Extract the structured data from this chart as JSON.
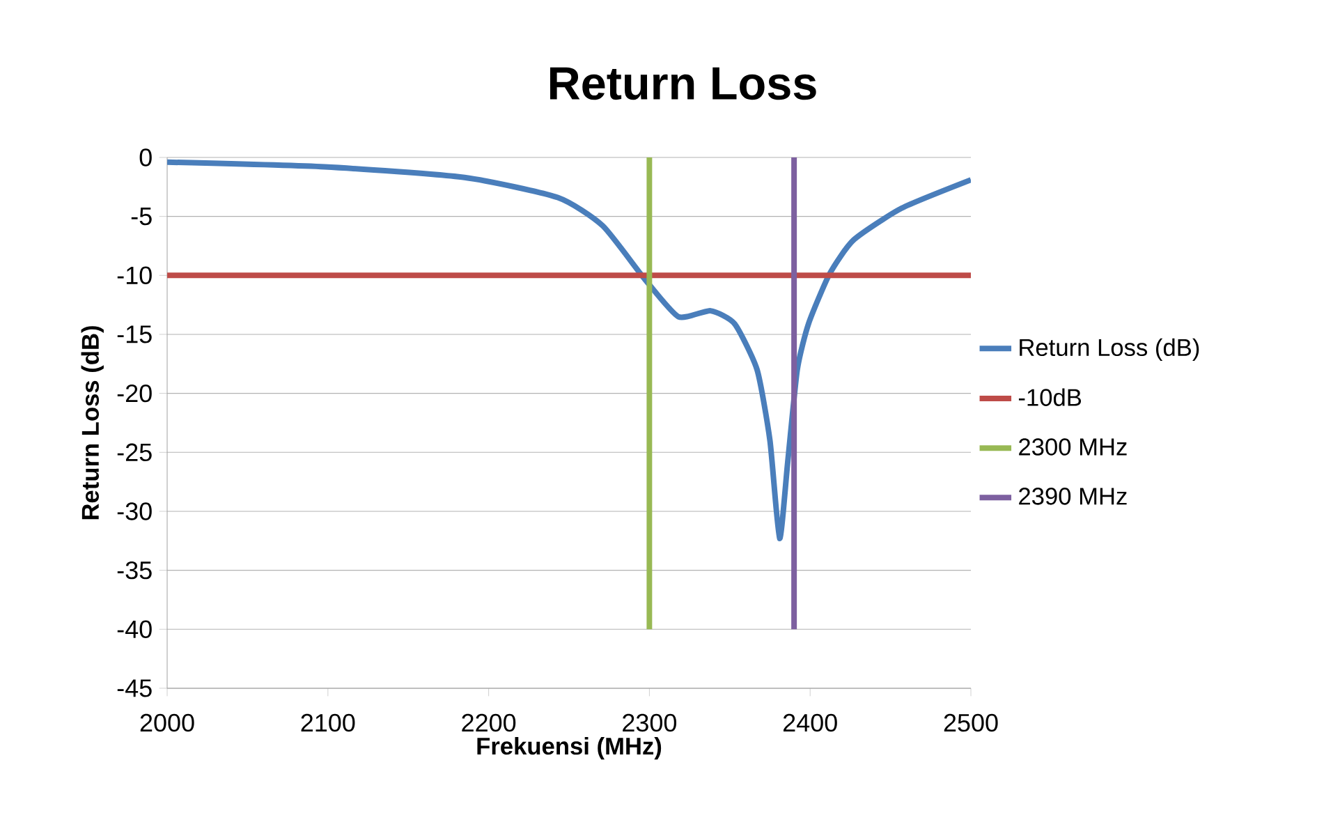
{
  "chart_data": {
    "type": "line",
    "title": "Return Loss",
    "xlabel": "Frekuensi  (MHz)",
    "ylabel": "Return  Loss (dB)",
    "xlim": [
      2000,
      2500
    ],
    "ylim": [
      -45,
      0
    ],
    "xticks": [
      2000,
      2100,
      2200,
      2300,
      2400,
      2500
    ],
    "yticks": [
      -45,
      -40,
      -35,
      -30,
      -25,
      -20,
      -15,
      -10,
      -5,
      0
    ],
    "grid": "y",
    "legend": "right",
    "marker": "none",
    "line_style": "solid",
    "series": [
      {
        "name": "Return Loss (dB)",
        "color": "#4a7ebb",
        "x": [
          2000,
          2098,
          2185,
          2243,
          2271,
          2297,
          2318,
          2338,
          2353,
          2367,
          2375,
          2381,
          2386,
          2392,
          2399,
          2412,
          2427,
          2457,
          2500
        ],
        "values": [
          -0.4,
          -0.8,
          -1.7,
          -3.4,
          -5.8,
          -10.3,
          -13.5,
          -13.0,
          -14.1,
          -18,
          -24,
          -32.3,
          -25.9,
          -18,
          -14.1,
          -9.9,
          -7,
          -4.3,
          -1.9
        ]
      },
      {
        "name": "-10dB",
        "color": "#be4b48",
        "x": [
          2000,
          2500
        ],
        "values": [
          -10,
          -10
        ]
      },
      {
        "name": "2300 MHz",
        "color": "#98b954",
        "x": [
          2300,
          2300
        ],
        "values": [
          0,
          -40
        ]
      },
      {
        "name": "2390 MHz",
        "color": "#7d60a0",
        "x": [
          2390,
          2390
        ],
        "values": [
          0,
          -40
        ]
      }
    ]
  }
}
